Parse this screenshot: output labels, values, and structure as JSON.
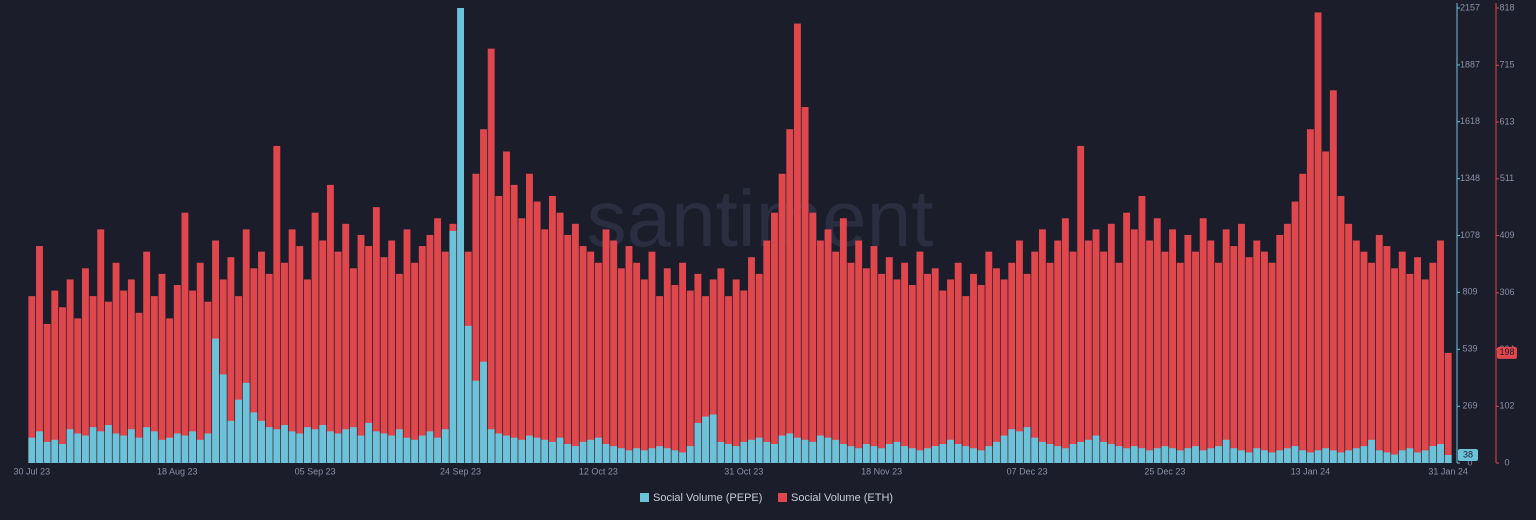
{
  "chart_data": {
    "type": "bar",
    "watermark": "santiment",
    "categories": [
      "30 Jul 23",
      null,
      null,
      null,
      null,
      null,
      null,
      null,
      null,
      null,
      null,
      null,
      null,
      null,
      null,
      null,
      null,
      null,
      null,
      "18 Aug 23",
      null,
      null,
      null,
      null,
      null,
      null,
      null,
      null,
      null,
      null,
      null,
      null,
      null,
      null,
      null,
      null,
      null,
      "05 Sep 23",
      null,
      null,
      null,
      null,
      null,
      null,
      null,
      null,
      null,
      null,
      null,
      null,
      null,
      null,
      null,
      null,
      null,
      null,
      "24 Sep 23",
      null,
      null,
      null,
      null,
      null,
      null,
      null,
      null,
      null,
      null,
      null,
      null,
      null,
      null,
      null,
      null,
      null,
      "12 Oct 23",
      null,
      null,
      null,
      null,
      null,
      null,
      null,
      null,
      null,
      null,
      null,
      null,
      null,
      null,
      null,
      null,
      null,
      null,
      "31 Oct 23",
      null,
      null,
      null,
      null,
      null,
      null,
      null,
      null,
      null,
      null,
      null,
      null,
      null,
      null,
      null,
      null,
      null,
      "18 Nov 23",
      null,
      null,
      null,
      null,
      null,
      null,
      null,
      null,
      null,
      null,
      null,
      null,
      null,
      null,
      null,
      null,
      null,
      null,
      "07 Dec 23",
      null,
      null,
      null,
      null,
      null,
      null,
      null,
      null,
      null,
      null,
      null,
      null,
      null,
      null,
      null,
      null,
      null,
      "25 Dec 23",
      null,
      null,
      null,
      null,
      null,
      null,
      null,
      null,
      null,
      null,
      null,
      null,
      null,
      null,
      null,
      null,
      null,
      null,
      "13 Jan 24",
      null,
      null,
      null,
      null,
      null,
      null,
      null,
      null,
      null,
      null,
      null,
      null,
      null,
      null,
      null,
      null,
      null,
      "31 Jan 24"
    ],
    "series": [
      {
        "name": "Social Volume (PEPE)",
        "color": "#6cc3d9",
        "axis": "y",
        "values": [
          120,
          150,
          100,
          110,
          90,
          160,
          140,
          130,
          170,
          150,
          180,
          140,
          130,
          160,
          120,
          170,
          150,
          110,
          120,
          140,
          130,
          150,
          110,
          140,
          590,
          420,
          200,
          300,
          380,
          240,
          200,
          170,
          160,
          180,
          150,
          140,
          170,
          160,
          180,
          150,
          140,
          160,
          170,
          130,
          190,
          150,
          140,
          130,
          160,
          120,
          110,
          130,
          150,
          120,
          160,
          1100,
          2157,
          650,
          390,
          480,
          160,
          140,
          130,
          120,
          110,
          130,
          120,
          110,
          100,
          120,
          90,
          80,
          100,
          110,
          120,
          90,
          80,
          70,
          60,
          70,
          60,
          70,
          80,
          70,
          60,
          50,
          80,
          190,
          220,
          230,
          100,
          90,
          80,
          100,
          110,
          120,
          100,
          90,
          130,
          140,
          120,
          110,
          100,
          130,
          120,
          110,
          90,
          80,
          70,
          90,
          80,
          70,
          90,
          100,
          80,
          70,
          60,
          70,
          80,
          90,
          110,
          90,
          80,
          70,
          60,
          80,
          100,
          130,
          160,
          150,
          170,
          120,
          100,
          90,
          80,
          70,
          90,
          100,
          110,
          130,
          100,
          90,
          80,
          70,
          80,
          70,
          60,
          70,
          80,
          70,
          60,
          70,
          80,
          60,
          70,
          80,
          110,
          70,
          60,
          50,
          70,
          60,
          50,
          60,
          70,
          80,
          60,
          50,
          60,
          70,
          60,
          50,
          60,
          70,
          80,
          110,
          60,
          50,
          40,
          60,
          70,
          50,
          60,
          80,
          90,
          38
        ]
      },
      {
        "name": "Social Volume (ETH)",
        "color": "#e0474c",
        "axis": "y2",
        "values": [
          300,
          390,
          250,
          310,
          280,
          330,
          260,
          350,
          300,
          420,
          290,
          360,
          310,
          330,
          270,
          380,
          300,
          340,
          260,
          320,
          450,
          310,
          360,
          290,
          400,
          330,
          370,
          300,
          420,
          350,
          380,
          340,
          570,
          360,
          420,
          390,
          330,
          450,
          400,
          500,
          380,
          430,
          350,
          410,
          390,
          460,
          370,
          400,
          340,
          420,
          360,
          390,
          410,
          440,
          380,
          430,
          420,
          380,
          520,
          600,
          745,
          480,
          560,
          500,
          440,
          520,
          470,
          420,
          480,
          450,
          410,
          430,
          390,
          380,
          360,
          420,
          400,
          350,
          390,
          360,
          330,
          380,
          300,
          350,
          320,
          360,
          310,
          340,
          300,
          330,
          350,
          300,
          330,
          310,
          370,
          340,
          400,
          450,
          520,
          600,
          790,
          640,
          450,
          400,
          420,
          380,
          440,
          360,
          400,
          350,
          390,
          340,
          370,
          330,
          360,
          320,
          380,
          340,
          350,
          310,
          330,
          360,
          300,
          340,
          320,
          380,
          350,
          330,
          360,
          400,
          340,
          380,
          420,
          360,
          400,
          440,
          380,
          570,
          400,
          420,
          380,
          430,
          360,
          450,
          420,
          480,
          400,
          440,
          380,
          420,
          360,
          410,
          380,
          440,
          400,
          360,
          420,
          390,
          430,
          370,
          400,
          380,
          360,
          410,
          430,
          470,
          520,
          600,
          810,
          560,
          670,
          480,
          430,
          400,
          380,
          360,
          410,
          390,
          350,
          380,
          340,
          370,
          330,
          360,
          400,
          198
        ]
      }
    ],
    "ylim": [
      0,
      2157
    ],
    "yticks": [
      0,
      269,
      539,
      809,
      1078,
      1348,
      1618,
      1887,
      2157
    ],
    "y2lim": [
      0,
      818
    ],
    "y2ticks": [
      0,
      102,
      204,
      306,
      409,
      511,
      613,
      715,
      818
    ]
  }
}
